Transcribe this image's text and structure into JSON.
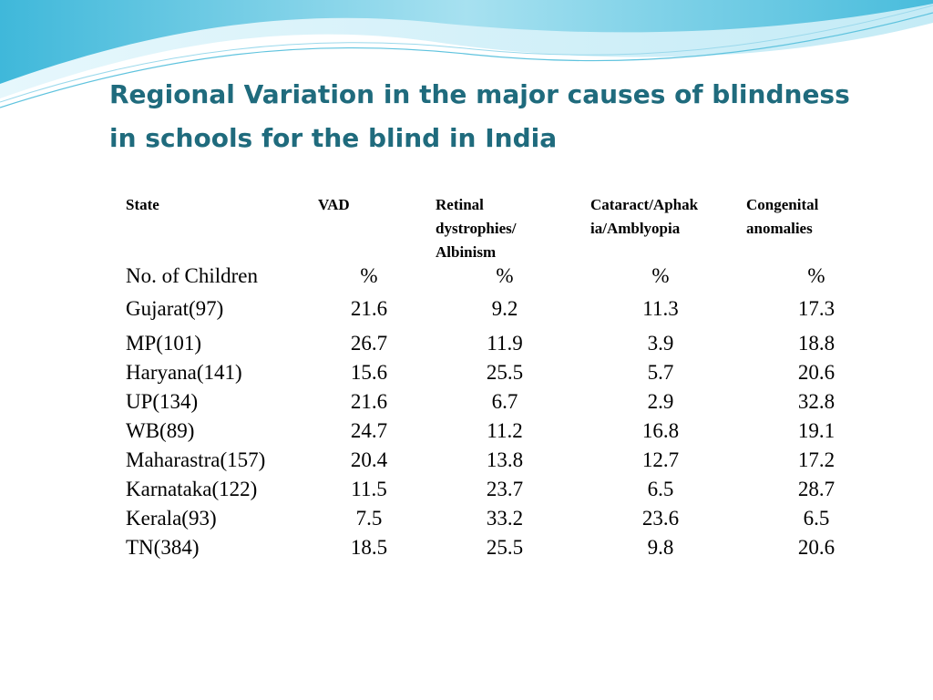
{
  "title": {
    "line1": "Regional Variation in the major causes of blindness",
    "line2": "in schools for the blind in India"
  },
  "table": {
    "headers": [
      {
        "lines": [
          "State"
        ]
      },
      {
        "lines": [
          "VAD"
        ]
      },
      {
        "lines": [
          "Retinal",
          "dystrophies/",
          "Albinism"
        ]
      },
      {
        "lines": [
          "Cataract/Aphak",
          "ia/Amblyopia"
        ]
      },
      {
        "lines": [
          "Congenital",
          "anomalies"
        ]
      }
    ],
    "rows": [
      [
        "No. of Children",
        "%",
        "%",
        "%",
        "%"
      ],
      [
        "Gujarat(97)",
        "21.6",
        "9.2",
        "11.3",
        "17.3"
      ],
      [
        "MP(101)",
        "26.7",
        "11.9",
        "3.9",
        "18.8"
      ],
      [
        "Haryana(141)",
        "15.6",
        "25.5",
        "5.7",
        "20.6"
      ],
      [
        "UP(134)",
        "21.6",
        "6.7",
        "2.9",
        "32.8"
      ],
      [
        "WB(89)",
        "24.7",
        "11.2",
        "16.8",
        "19.1"
      ],
      [
        "Maharastra(157)",
        "20.4",
        "13.8",
        "12.7",
        "17.2"
      ],
      [
        "Karnataka(122)",
        "11.5",
        "23.7",
        "6.5",
        "28.7"
      ],
      [
        "Kerala(93)",
        "7.5",
        "33.2",
        "23.6",
        "6.5"
      ],
      [
        "TN(384)",
        "18.5",
        "25.5",
        "9.8",
        "20.6"
      ]
    ]
  },
  "colors": {
    "title": "#1f6b7d",
    "wave_dark": "#5fc3de",
    "wave_light": "#d4f0f8"
  }
}
